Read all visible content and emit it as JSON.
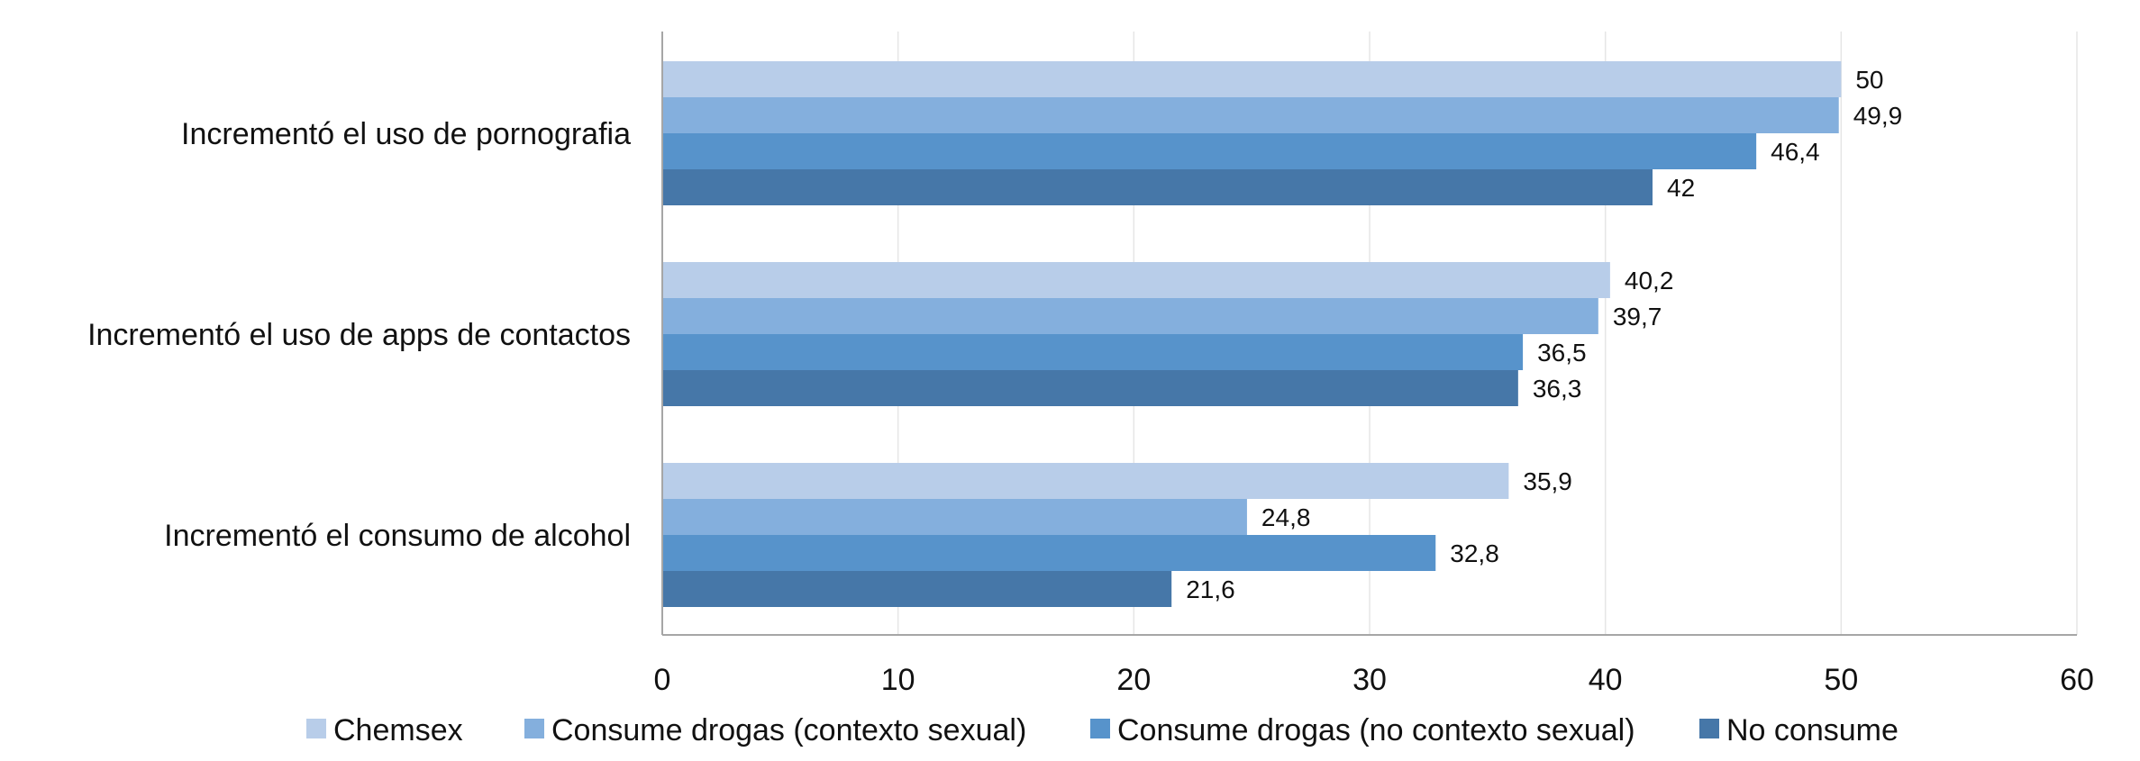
{
  "chart_data": {
    "type": "bar",
    "orientation": "horizontal",
    "categories": [
      "Incrementó el uso de pornografia",
      "Incrementó el uso de apps de contactos",
      "Incrementó el consumo de alcohol"
    ],
    "series": [
      {
        "name": "Chemsex",
        "color": "#b8cde9",
        "values": [
          50,
          40.2,
          35.9
        ],
        "labels": [
          "50",
          "40,2",
          "35,9"
        ]
      },
      {
        "name": "Consume drogas (contexto sexual)",
        "color": "#84afdd",
        "values": [
          49.9,
          39.7,
          24.8
        ],
        "labels": [
          "49,9",
          "39,7",
          "24,8"
        ]
      },
      {
        "name": "Consume drogas (no contexto sexual)",
        "color": "#5793cb",
        "values": [
          46.4,
          36.5,
          32.8
        ],
        "labels": [
          "46,4",
          "36,5",
          "32,8"
        ]
      },
      {
        "name": "No consume",
        "color": "#4677a8",
        "values": [
          42,
          36.3,
          21.6
        ],
        "labels": [
          "42",
          "36,3",
          "21,6"
        ]
      }
    ],
    "xlim": [
      0,
      60
    ],
    "xticks": [
      "0",
      "10",
      "20",
      "30",
      "40",
      "50",
      "60"
    ],
    "grid": true,
    "legend": "bottom"
  }
}
